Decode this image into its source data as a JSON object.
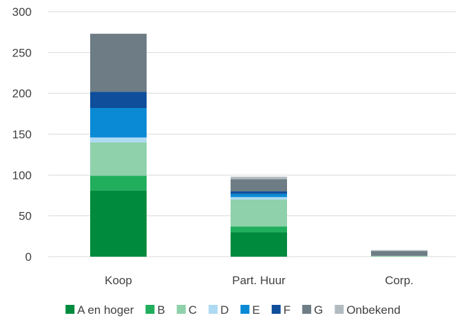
{
  "chart_data": {
    "type": "bar",
    "stacked": true,
    "categories": [
      "Koop",
      "Part. Huur",
      "Corp."
    ],
    "series": [
      {
        "name": "A en hoger",
        "color": "#008A3E",
        "values": [
          81,
          30,
          0
        ]
      },
      {
        "name": "B",
        "color": "#20AE5C",
        "values": [
          18,
          7,
          0
        ]
      },
      {
        "name": "C",
        "color": "#8ED1AA",
        "values": [
          41,
          33,
          1
        ]
      },
      {
        "name": "D",
        "color": "#AED9F2",
        "values": [
          6,
          3,
          0
        ]
      },
      {
        "name": "E",
        "color": "#0A8AD5",
        "values": [
          36,
          4,
          0
        ]
      },
      {
        "name": "F",
        "color": "#0E4E9A",
        "values": [
          20,
          3,
          0
        ]
      },
      {
        "name": "G",
        "color": "#6E7D85",
        "values": [
          71,
          15,
          6
        ]
      },
      {
        "name": "Onbekend",
        "color": "#B2BBC0",
        "values": [
          0,
          3,
          1
        ]
      }
    ],
    "ylim": [
      0,
      300
    ],
    "yticks": [
      0,
      50,
      100,
      150,
      200,
      250,
      300
    ],
    "grid": true,
    "legend": "bottom",
    "title": "",
    "xlabel": "",
    "ylabel": ""
  }
}
